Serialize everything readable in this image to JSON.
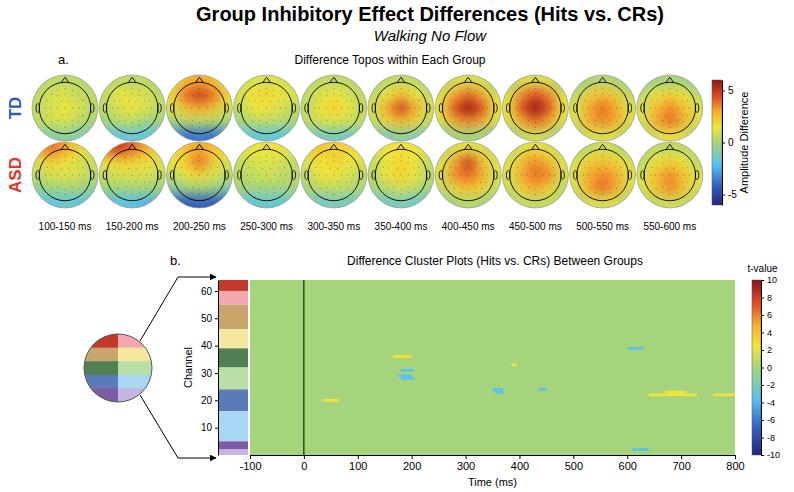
{
  "figure": {
    "title": "Group Inhibitory Effect Differences (Hits vs. CRs)",
    "subtitle": "Walking No Flow"
  },
  "chart_data": [
    {
      "type": "topoplot",
      "panel_label": "a.",
      "title": "Difference Topos within Each Group",
      "time_windows": [
        "100-150 ms",
        "150-200 ms",
        "200-250 ms",
        "250-300 ms",
        "300-350 ms",
        "350-400 ms",
        "400-450 ms",
        "450-500 ms",
        "500-550 ms",
        "550-600 ms"
      ],
      "groups": [
        {
          "name": "TD",
          "color": "#3057b5",
          "maps": [
            [
              [
                0,
                0.5,
                0.5,
                0.5,
                0
              ],
              [
                0.5,
                1,
                1,
                0.5,
                0.5
              ],
              [
                0.5,
                1,
                1.5,
                1,
                0.5
              ],
              [
                0.5,
                1,
                1,
                0.5,
                0
              ],
              [
                -1,
                -1,
                -0.5,
                -1,
                -1
              ]
            ],
            [
              [
                0,
                0.5,
                0.5,
                0.5,
                0
              ],
              [
                0.5,
                1.5,
                1,
                1,
                0.5
              ],
              [
                0.5,
                1,
                1.5,
                1,
                0.5
              ],
              [
                0,
                0.5,
                0.5,
                0,
                0
              ],
              [
                -2,
                -2,
                -1.5,
                -2,
                -2
              ]
            ],
            [
              [
                1,
                2.5,
                3,
                2.5,
                1
              ],
              [
                2,
                4,
                5,
                4,
                2
              ],
              [
                1,
                2.5,
                3,
                2.5,
                1
              ],
              [
                0,
                0.5,
                0.5,
                0.5,
                0
              ],
              [
                -3,
                -4,
                -3.5,
                -4,
                -3
              ]
            ],
            [
              [
                0.5,
                1,
                1,
                1,
                0.5
              ],
              [
                1,
                1.5,
                2,
                1.5,
                1
              ],
              [
                0.5,
                1.5,
                1.5,
                1,
                0.5
              ],
              [
                0,
                0.5,
                0.5,
                0.5,
                0
              ],
              [
                -1.5,
                -2,
                -1.5,
                -2,
                -1.5
              ]
            ],
            [
              [
                0,
                0.5,
                0.5,
                0.5,
                0
              ],
              [
                0.5,
                1,
                1.5,
                1,
                0.5
              ],
              [
                0.5,
                1.5,
                2,
                1.5,
                0.5
              ],
              [
                0.5,
                1,
                1,
                1,
                0.5
              ],
              [
                -1,
                -1.5,
                -1,
                -1.5,
                -1
              ]
            ],
            [
              [
                0,
                0.5,
                0.5,
                0.5,
                0
              ],
              [
                0.5,
                1.5,
                2.5,
                1.5,
                0.5
              ],
              [
                1,
                3,
                5,
                3,
                1
              ],
              [
                0.5,
                2,
                2.5,
                2,
                0.5
              ],
              [
                -1,
                -1,
                -0.5,
                -1,
                -1
              ]
            ],
            [
              [
                0,
                1,
                1,
                1,
                0
              ],
              [
                1,
                3,
                4,
                3,
                1
              ],
              [
                1.5,
                4.5,
                6,
                4.5,
                1.5
              ],
              [
                1,
                3,
                3.5,
                3,
                1
              ],
              [
                -1,
                0,
                0,
                0,
                -1
              ]
            ],
            [
              [
                0,
                1,
                1,
                1,
                0
              ],
              [
                1,
                3.5,
                4.5,
                3.5,
                1
              ],
              [
                1.5,
                4.5,
                6,
                4.5,
                1.5
              ],
              [
                1,
                3,
                4,
                3,
                1
              ],
              [
                -0.5,
                0.5,
                1,
                0.5,
                -0.5
              ]
            ],
            [
              [
                -0.5,
                0,
                0.5,
                0,
                -0.5
              ],
              [
                0.5,
                2,
                2.5,
                2,
                0.5
              ],
              [
                1,
                3,
                4,
                3,
                1
              ],
              [
                1,
                3,
                3.5,
                3,
                1
              ],
              [
                0,
                1,
                1,
                1,
                0
              ]
            ],
            [
              [
                -1,
                0,
                0,
                0,
                -1
              ],
              [
                0.5,
                1.5,
                2,
                1.5,
                0.5
              ],
              [
                1,
                2.5,
                3.5,
                2.5,
                1
              ],
              [
                1,
                3,
                4,
                3,
                1
              ],
              [
                0,
                1,
                1.5,
                1,
                0
              ]
            ]
          ]
        },
        {
          "name": "ASD",
          "color": "#e8312a",
          "maps": [
            [
              [
                3,
                4,
                3,
                2,
                1
              ],
              [
                1,
                2,
                1.5,
                1,
                0.5
              ],
              [
                0.5,
                1,
                1,
                1,
                0.5
              ],
              [
                -0.5,
                0,
                0,
                0,
                -0.5
              ],
              [
                -2,
                -2,
                -1.5,
                -2,
                -2
              ]
            ],
            [
              [
                4,
                5,
                4,
                3,
                2
              ],
              [
                1.5,
                2,
                2,
                1.5,
                1
              ],
              [
                0.5,
                1,
                1,
                1,
                0.5
              ],
              [
                0,
                0,
                0,
                0,
                0
              ],
              [
                -2.5,
                -2,
                -2,
                -2.5,
                -2.5
              ]
            ],
            [
              [
                2,
                2.5,
                3,
                2.5,
                2
              ],
              [
                1.5,
                2,
                4,
                2,
                1
              ],
              [
                0.5,
                1.5,
                2,
                1,
                0.5
              ],
              [
                -1,
                0,
                0,
                0,
                -1
              ],
              [
                -4,
                -4.5,
                -4,
                -4.5,
                -4
              ]
            ],
            [
              [
                1,
                1.5,
                1.5,
                1.5,
                1
              ],
              [
                0.5,
                1,
                1,
                1,
                0.5
              ],
              [
                0.5,
                0.5,
                1,
                0.5,
                0.5
              ],
              [
                0,
                0,
                0,
                0,
                0
              ],
              [
                -1.5,
                -2,
                -1.5,
                -2,
                -1.5
              ]
            ],
            [
              [
                2,
                2.5,
                2,
                2,
                1.5
              ],
              [
                1,
                1.5,
                2,
                1.5,
                1
              ],
              [
                0.5,
                1.5,
                1.5,
                1,
                0.5
              ],
              [
                0,
                0.5,
                0.5,
                0.5,
                0
              ],
              [
                -1,
                -1.5,
                -1,
                -1.5,
                -1
              ]
            ],
            [
              [
                1,
                1.5,
                1.5,
                1.5,
                1
              ],
              [
                0.5,
                1.5,
                2,
                1.5,
                0.5
              ],
              [
                0.5,
                1.5,
                2,
                1.5,
                0.5
              ],
              [
                0,
                0.5,
                1,
                0.5,
                0
              ],
              [
                -1.5,
                -1.5,
                -1,
                -1.5,
                -1.5
              ]
            ],
            [
              [
                0.5,
                1,
                1.5,
                1,
                0.5
              ],
              [
                1,
                3,
                5,
                2.5,
                1
              ],
              [
                1,
                3.5,
                4,
                3,
                1
              ],
              [
                0.5,
                2,
                2.5,
                2,
                0.5
              ],
              [
                -0.5,
                0,
                0.5,
                0,
                -0.5
              ]
            ],
            [
              [
                0.5,
                1,
                1.5,
                1,
                0.5
              ],
              [
                1,
                2.5,
                3.5,
                2.5,
                1
              ],
              [
                1,
                3,
                4,
                3.5,
                1
              ],
              [
                0.5,
                2,
                3,
                2,
                0.5
              ],
              [
                0,
                0.5,
                0.5,
                0.5,
                0
              ]
            ],
            [
              [
                0,
                0.5,
                1,
                0.5,
                0
              ],
              [
                1,
                2,
                2.5,
                2,
                1
              ],
              [
                1,
                3,
                3.5,
                3,
                1
              ],
              [
                1,
                3,
                4,
                3,
                1
              ],
              [
                0,
                1,
                1,
                1,
                0
              ]
            ],
            [
              [
                0,
                0.5,
                0.5,
                0.5,
                0
              ],
              [
                0.5,
                1.5,
                2,
                1.5,
                0.5
              ],
              [
                1,
                2.5,
                3.5,
                2.5,
                1
              ],
              [
                1,
                2.5,
                3.5,
                2.5,
                1
              ],
              [
                0,
                0.5,
                1,
                0.5,
                0
              ]
            ]
          ]
        }
      ],
      "colorbar": {
        "label": "Amplitude Difference",
        "lim": [
          -6,
          6
        ],
        "ticks": [
          -5,
          0,
          5
        ]
      }
    },
    {
      "type": "cluster",
      "panel_label": "b.",
      "title": "Difference Cluster Plots (Hits vs. CRs) Between Groups",
      "x_label": "Time (ms)",
      "y_label": "Channel",
      "xlim": [
        -100,
        800
      ],
      "xticks": [
        -100,
        0,
        100,
        200,
        300,
        400,
        500,
        600,
        700,
        800
      ],
      "ylim": [
        0,
        64
      ],
      "yticks": [
        10,
        20,
        30,
        40,
        50,
        60
      ],
      "onset": 0,
      "segments": [
        {
          "channel": 36,
          "start": 165,
          "end": 200,
          "t": 2.5
        },
        {
          "channel": 31,
          "start": 180,
          "end": 205,
          "t": -3.5
        },
        {
          "channel": 29,
          "start": 175,
          "end": 200,
          "t": -3.5
        },
        {
          "channel": 28,
          "start": 180,
          "end": 205,
          "t": -3.5
        },
        {
          "channel": 20,
          "start": 35,
          "end": 65,
          "t": 2.5
        },
        {
          "channel": 33,
          "start": 385,
          "end": 395,
          "t": 2.5
        },
        {
          "channel": 24,
          "start": 350,
          "end": 370,
          "t": -3.5
        },
        {
          "channel": 23,
          "start": 355,
          "end": 370,
          "t": -3.5
        },
        {
          "channel": 24,
          "start": 435,
          "end": 450,
          "t": -3.5
        },
        {
          "channel": 39,
          "start": 600,
          "end": 630,
          "t": -3.5
        },
        {
          "channel": 2,
          "start": 610,
          "end": 640,
          "t": -3.5
        },
        {
          "channel": 22,
          "start": 640,
          "end": 730,
          "t": 2.5
        },
        {
          "channel": 23,
          "start": 670,
          "end": 710,
          "t": 2.5
        },
        {
          "channel": 22,
          "start": 760,
          "end": 800,
          "t": 2.5
        }
      ],
      "channel_groups": [
        {
          "from": 60,
          "to": 64,
          "color": "#c0392b"
        },
        {
          "from": 55,
          "to": 60,
          "color": "#f2a7b0"
        },
        {
          "from": 46,
          "to": 55,
          "color": "#c9a46b"
        },
        {
          "from": 39,
          "to": 46,
          "color": "#f5e79e"
        },
        {
          "from": 32,
          "to": 39,
          "color": "#4f7f52"
        },
        {
          "from": 24,
          "to": 32,
          "color": "#b9dfa4"
        },
        {
          "from": 16,
          "to": 24,
          "color": "#5b7bb8"
        },
        {
          "from": 5,
          "to": 16,
          "color": "#a9d6f2"
        },
        {
          "from": 2,
          "to": 5,
          "color": "#7d5ba6"
        },
        {
          "from": 0,
          "to": 2,
          "color": "#c8b4e2"
        }
      ],
      "colorbar": {
        "label": "t-value",
        "lim": [
          -10,
          10
        ],
        "ticks": [
          -10,
          -8,
          -6,
          -4,
          -2,
          0,
          2,
          4,
          6,
          8,
          10
        ]
      }
    }
  ]
}
